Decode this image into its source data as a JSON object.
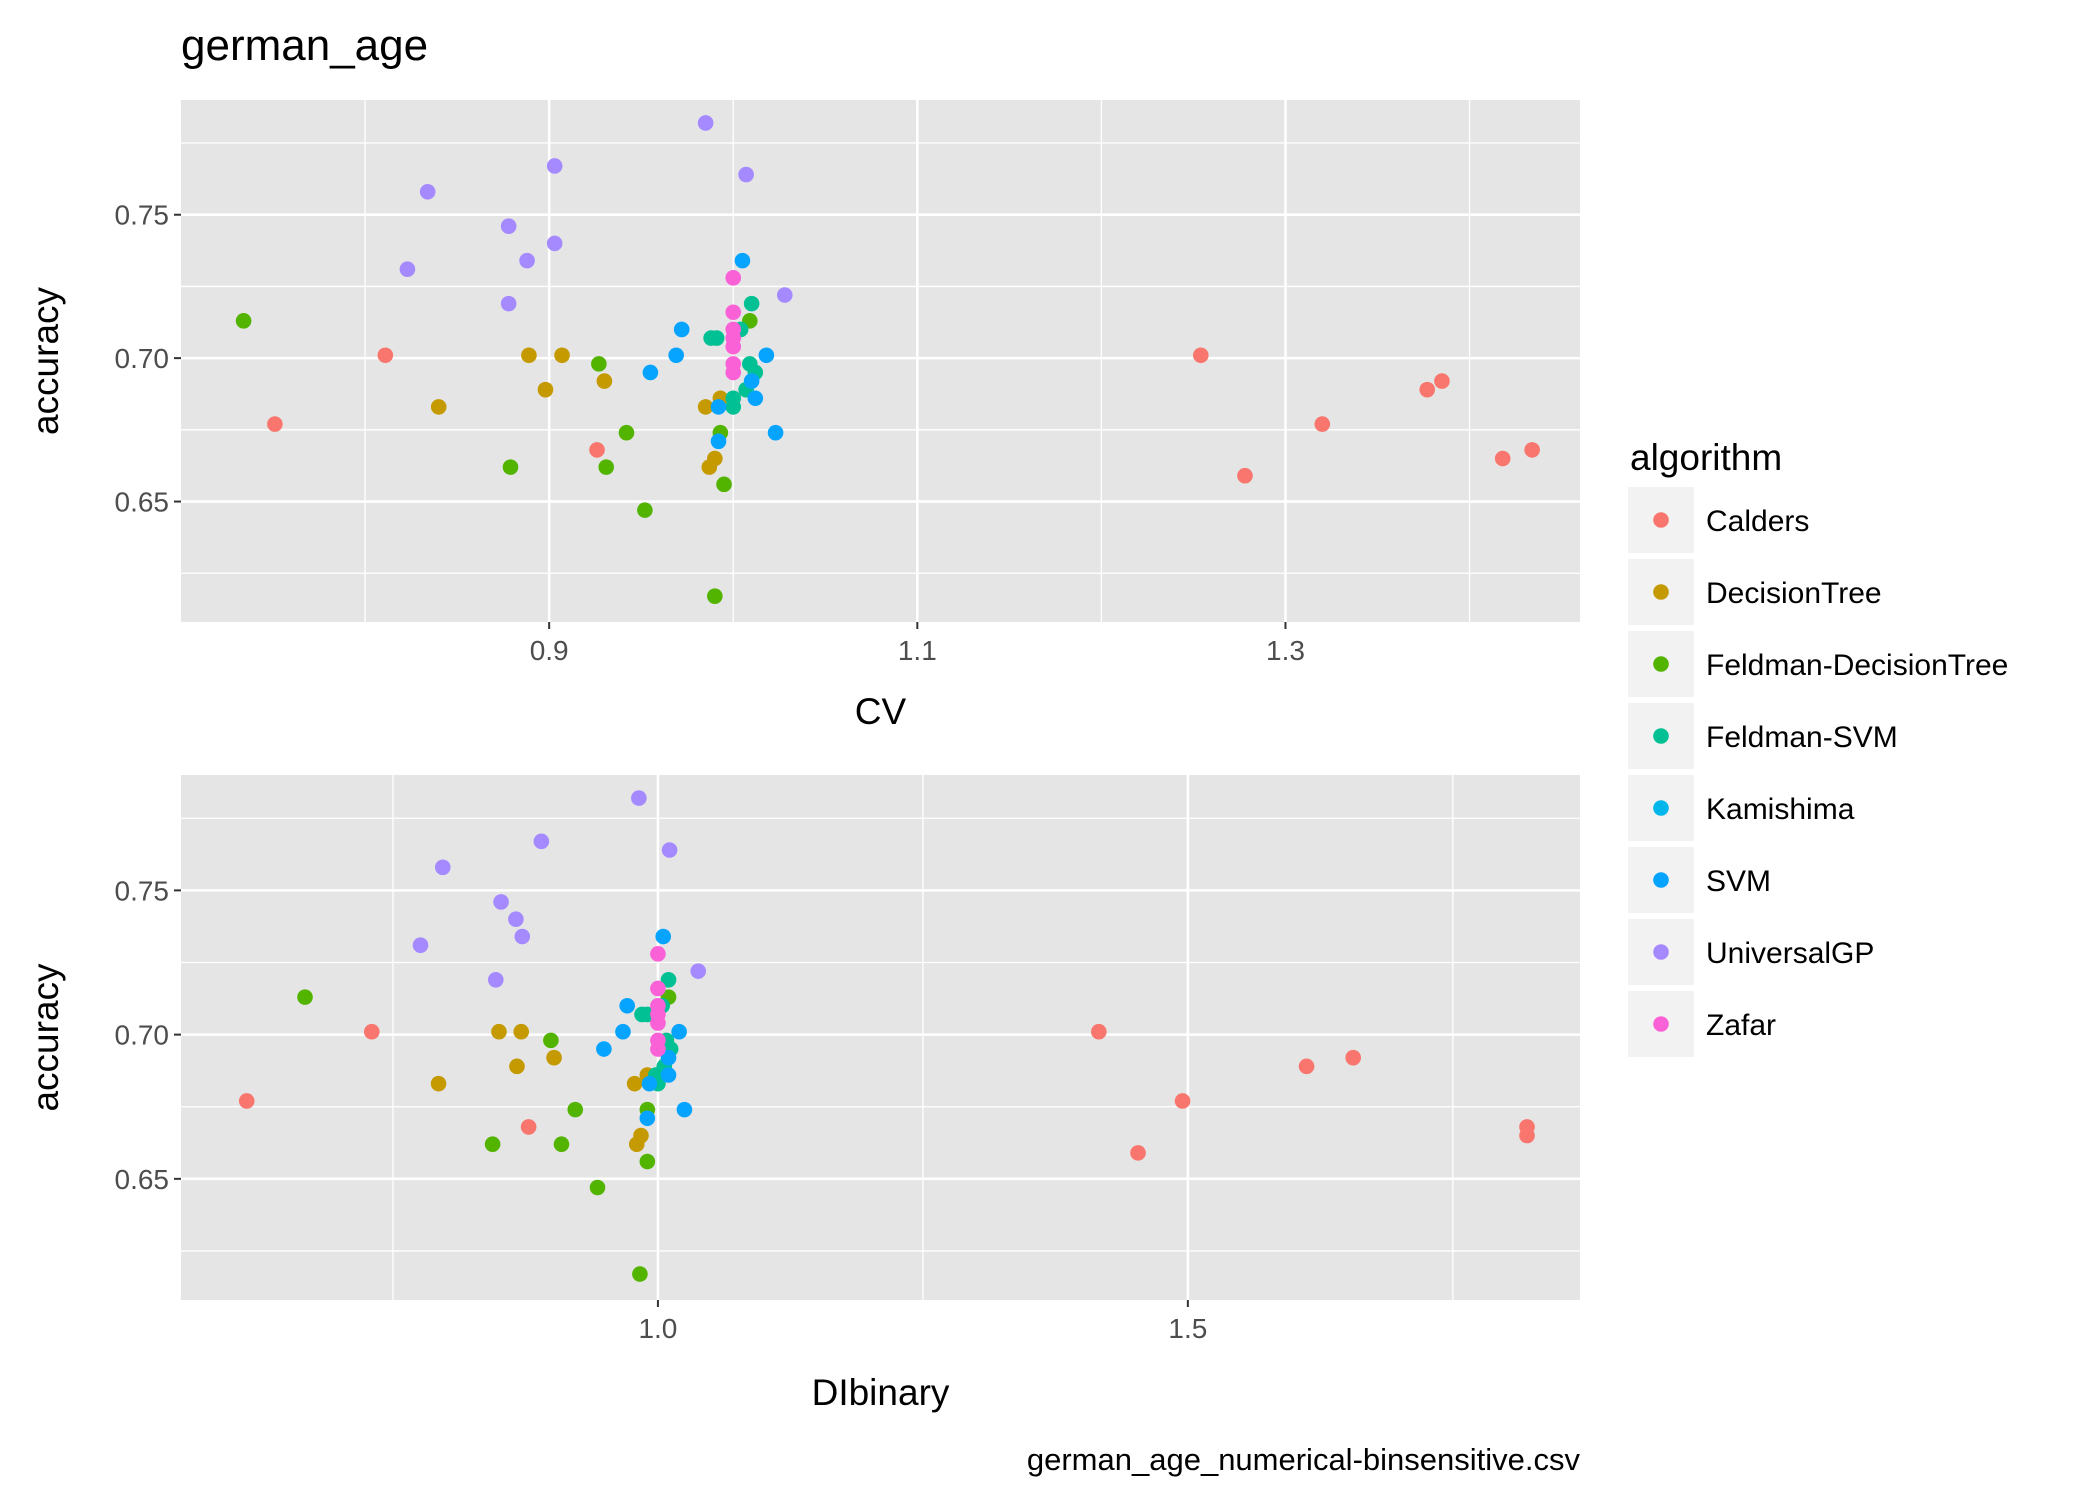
{
  "chart_data": [
    {
      "type": "scatter",
      "title": "german_age",
      "xlabel": "CV",
      "ylabel": "accuracy",
      "xlim": [
        0.7,
        1.46
      ],
      "ylim": [
        0.608,
        0.79
      ],
      "x_ticks": [
        0.9,
        1.1,
        1.3
      ],
      "x_tick_labels": [
        "0.9",
        "1.1",
        "1.3"
      ],
      "y_ticks": [
        0.65,
        0.7,
        0.75
      ],
      "y_tick_labels": [
        "0.65",
        "0.70",
        "0.75"
      ],
      "grid": true,
      "series": [
        {
          "name": "Calders",
          "color": "#F8766D",
          "points": [
            [
              0.751,
              0.677
            ],
            [
              0.811,
              0.701
            ],
            [
              0.926,
              0.668
            ],
            [
              1.254,
              0.701
            ],
            [
              1.278,
              0.659
            ],
            [
              1.32,
              0.677
            ],
            [
              1.377,
              0.689
            ],
            [
              1.385,
              0.692
            ],
            [
              1.418,
              0.665
            ],
            [
              1.434,
              0.668
            ]
          ]
        },
        {
          "name": "DecisionTree",
          "color": "#C49A00",
          "points": [
            [
              0.84,
              0.683
            ],
            [
              0.889,
              0.701
            ],
            [
              0.898,
              0.689
            ],
            [
              0.907,
              0.701
            ],
            [
              0.93,
              0.692
            ],
            [
              0.985,
              0.683
            ],
            [
              0.987,
              0.662
            ],
            [
              0.99,
              0.665
            ],
            [
              0.993,
              0.686
            ]
          ]
        },
        {
          "name": "Feldman-DecisionTree",
          "color": "#53B400",
          "points": [
            [
              0.734,
              0.713
            ],
            [
              0.879,
              0.662
            ],
            [
              0.927,
              0.698
            ],
            [
              0.931,
              0.662
            ],
            [
              0.942,
              0.674
            ],
            [
              0.952,
              0.647
            ],
            [
              0.99,
              0.617
            ],
            [
              0.993,
              0.674
            ],
            [
              0.995,
              0.656
            ],
            [
              1.009,
              0.713
            ]
          ]
        },
        {
          "name": "Feldman-SVM",
          "color": "#00C094",
          "points": [
            [
              0.988,
              0.707
            ],
            [
              0.991,
              0.707
            ],
            [
              1.0,
              0.686
            ],
            [
              1.0,
              0.683
            ],
            [
              1.004,
              0.71
            ],
            [
              1.007,
              0.689
            ],
            [
              1.009,
              0.698
            ],
            [
              1.01,
              0.719
            ],
            [
              1.012,
              0.695
            ]
          ]
        },
        {
          "name": "Kamishima",
          "color": "#00B6EB",
          "points": []
        },
        {
          "name": "SVM",
          "color": "#06A4FF",
          "points": [
            [
              0.955,
              0.695
            ],
            [
              0.969,
              0.701
            ],
            [
              0.972,
              0.71
            ],
            [
              0.992,
              0.683
            ],
            [
              0.992,
              0.671
            ],
            [
              1.005,
              0.734
            ],
            [
              1.01,
              0.692
            ],
            [
              1.012,
              0.686
            ],
            [
              1.018,
              0.701
            ],
            [
              1.023,
              0.674
            ]
          ]
        },
        {
          "name": "UniversalGP",
          "color": "#A58AFF",
          "points": [
            [
              0.823,
              0.731
            ],
            [
              0.834,
              0.758
            ],
            [
              0.878,
              0.746
            ],
            [
              0.878,
              0.719
            ],
            [
              0.888,
              0.734
            ],
            [
              0.903,
              0.767
            ],
            [
              0.903,
              0.74
            ],
            [
              0.985,
              0.782
            ],
            [
              1.007,
              0.764
            ],
            [
              1.028,
              0.722
            ]
          ]
        },
        {
          "name": "Zafar",
          "color": "#FB61D7",
          "points": [
            [
              1.0,
              0.728
            ],
            [
              1.0,
              0.716
            ],
            [
              1.0,
              0.71
            ],
            [
              1.0,
              0.707
            ],
            [
              1.0,
              0.704
            ],
            [
              1.0,
              0.698
            ],
            [
              1.0,
              0.695
            ]
          ]
        }
      ]
    },
    {
      "type": "scatter",
      "title": "",
      "xlabel": "DIbinary",
      "ylabel": "accuracy",
      "xlim": [
        0.55,
        1.87
      ],
      "ylim": [
        0.608,
        0.79
      ],
      "x_ticks": [
        1.0,
        1.5
      ],
      "x_tick_labels": [
        "1.0",
        "1.5"
      ],
      "y_ticks": [
        0.65,
        0.7,
        0.75
      ],
      "y_tick_labels": [
        "0.65",
        "0.70",
        "0.75"
      ],
      "grid": true,
      "series": [
        {
          "name": "Calders",
          "color": "#F8766D",
          "points": [
            [
              0.612,
              0.677
            ],
            [
              0.73,
              0.701
            ],
            [
              0.878,
              0.668
            ],
            [
              1.416,
              0.701
            ],
            [
              1.453,
              0.659
            ],
            [
              1.495,
              0.677
            ],
            [
              1.612,
              0.689
            ],
            [
              1.656,
              0.692
            ],
            [
              1.82,
              0.665
            ],
            [
              1.82,
              0.668
            ]
          ]
        },
        {
          "name": "DecisionTree",
          "color": "#C49A00",
          "points": [
            [
              0.793,
              0.683
            ],
            [
              0.85,
              0.701
            ],
            [
              0.867,
              0.689
            ],
            [
              0.871,
              0.701
            ],
            [
              0.902,
              0.692
            ],
            [
              0.978,
              0.683
            ],
            [
              0.98,
              0.662
            ],
            [
              0.984,
              0.665
            ],
            [
              0.99,
              0.686
            ]
          ]
        },
        {
          "name": "Feldman-DecisionTree",
          "color": "#53B400",
          "points": [
            [
              0.667,
              0.713
            ],
            [
              0.844,
              0.662
            ],
            [
              0.899,
              0.698
            ],
            [
              0.909,
              0.662
            ],
            [
              0.922,
              0.674
            ],
            [
              0.943,
              0.647
            ],
            [
              0.983,
              0.617
            ],
            [
              0.99,
              0.674
            ],
            [
              0.99,
              0.656
            ],
            [
              1.01,
              0.713
            ]
          ]
        },
        {
          "name": "Feldman-SVM",
          "color": "#00C094",
          "points": [
            [
              0.985,
              0.707
            ],
            [
              0.99,
              0.707
            ],
            [
              0.998,
              0.686
            ],
            [
              1.0,
              0.683
            ],
            [
              1.004,
              0.71
            ],
            [
              1.006,
              0.689
            ],
            [
              1.008,
              0.698
            ],
            [
              1.01,
              0.719
            ],
            [
              1.012,
              0.695
            ]
          ]
        },
        {
          "name": "Kamishima",
          "color": "#00B6EB",
          "points": []
        },
        {
          "name": "SVM",
          "color": "#06A4FF",
          "points": [
            [
              0.949,
              0.695
            ],
            [
              0.967,
              0.701
            ],
            [
              0.971,
              0.71
            ],
            [
              0.992,
              0.683
            ],
            [
              0.99,
              0.671
            ],
            [
              1.005,
              0.734
            ],
            [
              1.01,
              0.692
            ],
            [
              1.01,
              0.686
            ],
            [
              1.02,
              0.701
            ],
            [
              1.025,
              0.674
            ]
          ]
        },
        {
          "name": "UniversalGP",
          "color": "#A58AFF",
          "points": [
            [
              0.776,
              0.731
            ],
            [
              0.797,
              0.758
            ],
            [
              0.852,
              0.746
            ],
            [
              0.847,
              0.719
            ],
            [
              0.866,
              0.74
            ],
            [
              0.872,
              0.734
            ],
            [
              0.89,
              0.767
            ],
            [
              0.982,
              0.782
            ],
            [
              1.011,
              0.764
            ],
            [
              1.038,
              0.722
            ]
          ]
        },
        {
          "name": "Zafar",
          "color": "#FB61D7",
          "points": [
            [
              1.0,
              0.728
            ],
            [
              1.0,
              0.716
            ],
            [
              1.0,
              0.71
            ],
            [
              1.0,
              0.707
            ],
            [
              1.0,
              0.704
            ],
            [
              1.0,
              0.698
            ],
            [
              1.0,
              0.695
            ]
          ]
        }
      ]
    }
  ],
  "legend": {
    "title": "algorithm",
    "placement": "right",
    "items": [
      {
        "label": "Calders",
        "color": "#F8766D"
      },
      {
        "label": "DecisionTree",
        "color": "#C49A00"
      },
      {
        "label": "Feldman-DecisionTree",
        "color": "#53B400"
      },
      {
        "label": "Feldman-SVM",
        "color": "#00C094"
      },
      {
        "label": "Kamishima",
        "color": "#00B6EB"
      },
      {
        "label": "SVM",
        "color": "#06A4FF"
      },
      {
        "label": "UniversalGP",
        "color": "#A58AFF"
      },
      {
        "label": "Zafar",
        "color": "#FB61D7"
      }
    ]
  },
  "caption": "german_age_numerical-binsensitive.csv",
  "colors": {
    "panel_background": "#E5E5E5",
    "grid": "#FFFFFF",
    "legend_key_background": "#F2F2F2"
  }
}
